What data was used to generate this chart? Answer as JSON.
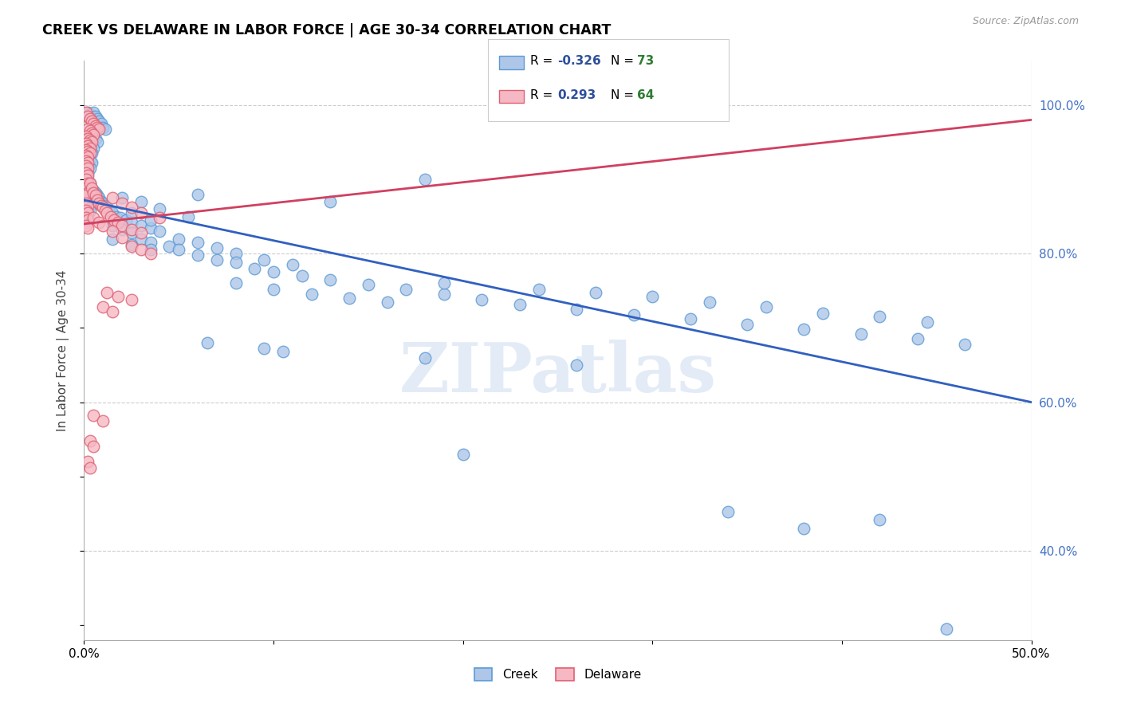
{
  "title": "CREEK VS DELAWARE IN LABOR FORCE | AGE 30-34 CORRELATION CHART",
  "source": "Source: ZipAtlas.com",
  "ylabel": "In Labor Force | Age 30-34",
  "xlim": [
    0.0,
    0.5
  ],
  "ylim": [
    0.28,
    1.06
  ],
  "ytick_positions": [
    0.4,
    0.6,
    0.8,
    1.0
  ],
  "yticklabels_right": [
    "40.0%",
    "60.0%",
    "80.0%",
    "100.0%"
  ],
  "creek_color": "#aec6e8",
  "creek_edge_color": "#5b9bd5",
  "delaware_color": "#f5b8c4",
  "delaware_edge_color": "#e06070",
  "creek_line_color": "#3060c0",
  "delaware_line_color": "#d04060",
  "watermark": "ZIPatlas",
  "legend_R_color": "#2e4f9e",
  "legend_N_color": "#2e7d32",
  "creek_line_endpoints": [
    [
      0.0,
      0.872
    ],
    [
      0.5,
      0.6
    ]
  ],
  "delaware_line_endpoints": [
    [
      0.0,
      0.84
    ],
    [
      0.5,
      0.98
    ]
  ],
  "creek_scatter": [
    [
      0.002,
      0.99
    ],
    [
      0.003,
      0.988
    ],
    [
      0.004,
      0.985
    ],
    [
      0.005,
      0.99
    ],
    [
      0.006,
      0.985
    ],
    [
      0.007,
      0.982
    ],
    [
      0.008,
      0.978
    ],
    [
      0.009,
      0.975
    ],
    [
      0.01,
      0.97
    ],
    [
      0.011,
      0.968
    ],
    [
      0.003,
      0.96
    ],
    [
      0.005,
      0.958
    ],
    [
      0.006,
      0.955
    ],
    [
      0.002,
      0.955
    ],
    [
      0.004,
      0.952
    ],
    [
      0.007,
      0.95
    ],
    [
      0.001,
      0.95
    ],
    [
      0.003,
      0.945
    ],
    [
      0.005,
      0.942
    ],
    [
      0.001,
      0.94
    ],
    [
      0.002,
      0.938
    ],
    [
      0.004,
      0.935
    ],
    [
      0.001,
      0.93
    ],
    [
      0.002,
      0.928
    ],
    [
      0.003,
      0.925
    ],
    [
      0.004,
      0.922
    ],
    [
      0.001,
      0.92
    ],
    [
      0.002,
      0.918
    ],
    [
      0.003,
      0.915
    ],
    [
      0.001,
      0.91
    ],
    [
      0.002,
      0.908
    ],
    [
      0.002,
      0.9
    ],
    [
      0.003,
      0.895
    ],
    [
      0.001,
      0.892
    ],
    [
      0.002,
      0.89
    ],
    [
      0.003,
      0.888
    ],
    [
      0.001,
      0.88
    ],
    [
      0.002,
      0.878
    ],
    [
      0.003,
      0.875
    ],
    [
      0.004,
      0.872
    ],
    [
      0.001,
      0.87
    ],
    [
      0.002,
      0.868
    ],
    [
      0.003,
      0.865
    ],
    [
      0.001,
      0.862
    ],
    [
      0.002,
      0.86
    ],
    [
      0.003,
      0.858
    ],
    [
      0.001,
      0.855
    ],
    [
      0.002,
      0.852
    ],
    [
      0.001,
      0.848
    ],
    [
      0.002,
      0.845
    ],
    [
      0.005,
      0.885
    ],
    [
      0.006,
      0.882
    ],
    [
      0.007,
      0.878
    ],
    [
      0.008,
      0.875
    ],
    [
      0.009,
      0.87
    ],
    [
      0.01,
      0.868
    ],
    [
      0.011,
      0.865
    ],
    [
      0.012,
      0.862
    ],
    [
      0.013,
      0.858
    ],
    [
      0.015,
      0.855
    ],
    [
      0.017,
      0.85
    ],
    [
      0.019,
      0.848
    ],
    [
      0.022,
      0.845
    ],
    [
      0.025,
      0.842
    ],
    [
      0.03,
      0.838
    ],
    [
      0.035,
      0.835
    ],
    [
      0.04,
      0.83
    ],
    [
      0.05,
      0.82
    ],
    [
      0.06,
      0.815
    ],
    [
      0.07,
      0.808
    ],
    [
      0.08,
      0.8
    ],
    [
      0.095,
      0.792
    ],
    [
      0.11,
      0.785
    ],
    [
      0.03,
      0.87
    ],
    [
      0.04,
      0.86
    ],
    [
      0.055,
      0.85
    ],
    [
      0.02,
      0.875
    ],
    [
      0.025,
      0.855
    ],
    [
      0.035,
      0.845
    ],
    [
      0.015,
      0.838
    ],
    [
      0.02,
      0.832
    ],
    [
      0.025,
      0.828
    ],
    [
      0.03,
      0.82
    ],
    [
      0.035,
      0.815
    ],
    [
      0.045,
      0.81
    ],
    [
      0.05,
      0.805
    ],
    [
      0.06,
      0.798
    ],
    [
      0.07,
      0.792
    ],
    [
      0.08,
      0.788
    ],
    [
      0.09,
      0.78
    ],
    [
      0.1,
      0.775
    ],
    [
      0.115,
      0.77
    ],
    [
      0.13,
      0.765
    ],
    [
      0.15,
      0.758
    ],
    [
      0.17,
      0.752
    ],
    [
      0.19,
      0.745
    ],
    [
      0.21,
      0.738
    ],
    [
      0.23,
      0.732
    ],
    [
      0.26,
      0.725
    ],
    [
      0.29,
      0.718
    ],
    [
      0.32,
      0.712
    ],
    [
      0.35,
      0.705
    ],
    [
      0.38,
      0.698
    ],
    [
      0.41,
      0.692
    ],
    [
      0.44,
      0.685
    ],
    [
      0.465,
      0.678
    ],
    [
      0.015,
      0.82
    ],
    [
      0.025,
      0.812
    ],
    [
      0.035,
      0.805
    ],
    [
      0.18,
      0.9
    ],
    [
      0.06,
      0.88
    ],
    [
      0.13,
      0.87
    ],
    [
      0.19,
      0.76
    ],
    [
      0.24,
      0.752
    ],
    [
      0.27,
      0.748
    ],
    [
      0.3,
      0.742
    ],
    [
      0.33,
      0.735
    ],
    [
      0.36,
      0.728
    ],
    [
      0.39,
      0.72
    ],
    [
      0.42,
      0.715
    ],
    [
      0.445,
      0.708
    ],
    [
      0.08,
      0.76
    ],
    [
      0.1,
      0.752
    ],
    [
      0.12,
      0.745
    ],
    [
      0.14,
      0.74
    ],
    [
      0.16,
      0.735
    ],
    [
      0.065,
      0.68
    ],
    [
      0.095,
      0.672
    ],
    [
      0.105,
      0.668
    ],
    [
      0.18,
      0.66
    ],
    [
      0.26,
      0.65
    ],
    [
      0.2,
      0.53
    ],
    [
      0.34,
      0.452
    ],
    [
      0.42,
      0.442
    ],
    [
      0.38,
      0.43
    ],
    [
      0.455,
      0.295
    ]
  ],
  "delaware_scatter": [
    [
      0.001,
      0.99
    ],
    [
      0.002,
      0.985
    ],
    [
      0.003,
      0.982
    ],
    [
      0.004,
      0.978
    ],
    [
      0.005,
      0.975
    ],
    [
      0.006,
      0.972
    ],
    [
      0.007,
      0.97
    ],
    [
      0.008,
      0.968
    ],
    [
      0.002,
      0.968
    ],
    [
      0.003,
      0.965
    ],
    [
      0.004,
      0.962
    ],
    [
      0.005,
      0.96
    ],
    [
      0.001,
      0.958
    ],
    [
      0.002,
      0.955
    ],
    [
      0.003,
      0.952
    ],
    [
      0.004,
      0.95
    ],
    [
      0.001,
      0.948
    ],
    [
      0.002,
      0.945
    ],
    [
      0.003,
      0.942
    ],
    [
      0.001,
      0.94
    ],
    [
      0.002,
      0.938
    ],
    [
      0.003,
      0.935
    ],
    [
      0.001,
      0.932
    ],
    [
      0.002,
      0.93
    ],
    [
      0.001,
      0.925
    ],
    [
      0.002,
      0.922
    ],
    [
      0.001,
      0.918
    ],
    [
      0.002,
      0.915
    ],
    [
      0.001,
      0.908
    ],
    [
      0.002,
      0.905
    ],
    [
      0.001,
      0.9
    ],
    [
      0.002,
      0.895
    ],
    [
      0.001,
      0.888
    ],
    [
      0.002,
      0.882
    ],
    [
      0.001,
      0.878
    ],
    [
      0.001,
      0.868
    ],
    [
      0.002,
      0.865
    ],
    [
      0.001,
      0.858
    ],
    [
      0.002,
      0.855
    ],
    [
      0.001,
      0.848
    ],
    [
      0.002,
      0.845
    ],
    [
      0.001,
      0.838
    ],
    [
      0.002,
      0.835
    ],
    [
      0.003,
      0.895
    ],
    [
      0.004,
      0.888
    ],
    [
      0.005,
      0.882
    ],
    [
      0.006,
      0.878
    ],
    [
      0.007,
      0.872
    ],
    [
      0.008,
      0.868
    ],
    [
      0.009,
      0.865
    ],
    [
      0.01,
      0.862
    ],
    [
      0.011,
      0.858
    ],
    [
      0.012,
      0.855
    ],
    [
      0.014,
      0.85
    ],
    [
      0.016,
      0.845
    ],
    [
      0.018,
      0.842
    ],
    [
      0.02,
      0.838
    ],
    [
      0.025,
      0.832
    ],
    [
      0.03,
      0.828
    ],
    [
      0.015,
      0.875
    ],
    [
      0.02,
      0.868
    ],
    [
      0.025,
      0.862
    ],
    [
      0.03,
      0.855
    ],
    [
      0.04,
      0.848
    ],
    [
      0.005,
      0.848
    ],
    [
      0.008,
      0.842
    ],
    [
      0.01,
      0.838
    ],
    [
      0.015,
      0.83
    ],
    [
      0.02,
      0.822
    ],
    [
      0.025,
      0.81
    ],
    [
      0.03,
      0.805
    ],
    [
      0.035,
      0.8
    ],
    [
      0.012,
      0.748
    ],
    [
      0.018,
      0.742
    ],
    [
      0.025,
      0.738
    ],
    [
      0.01,
      0.728
    ],
    [
      0.015,
      0.722
    ],
    [
      0.005,
      0.582
    ],
    [
      0.01,
      0.575
    ],
    [
      0.003,
      0.548
    ],
    [
      0.005,
      0.54
    ],
    [
      0.002,
      0.52
    ],
    [
      0.003,
      0.512
    ]
  ]
}
